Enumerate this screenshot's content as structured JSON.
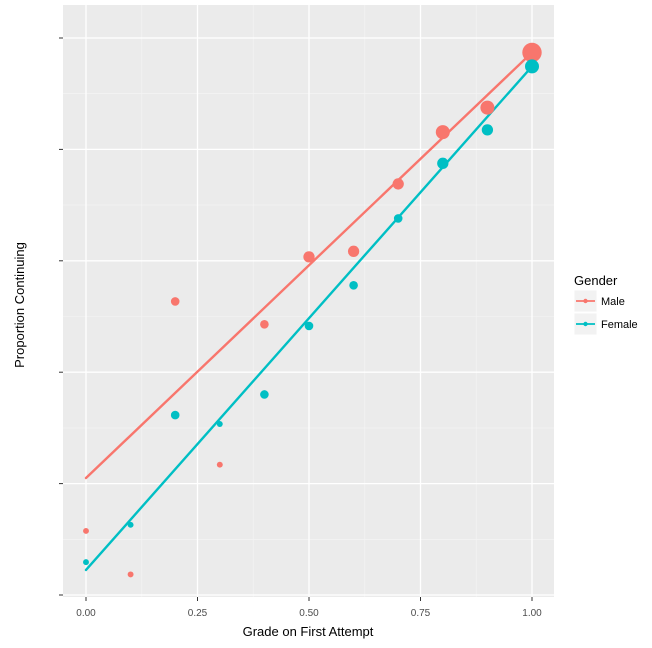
{
  "chart_data": {
    "type": "scatter",
    "title": "",
    "xlabel": "Grade on First Attempt",
    "ylabel": "Proportion Continuing",
    "xlim": [
      -0.05,
      1.05
    ],
    "ylim": [
      0,
      1
    ],
    "x_ticks": [
      0,
      0.25,
      0.5,
      0.75,
      1
    ],
    "x_tick_labels": [
      "0.00",
      "0.25",
      "0.50",
      "0.75",
      "1.00"
    ],
    "y_tick_labels_visible": false,
    "grid": true,
    "legend": {
      "title": "Gender",
      "position": "right"
    },
    "series": [
      {
        "name": "Male",
        "color": "#F8766D",
        "points": [
          {
            "x": 0.0,
            "y": 0.115,
            "size": 1
          },
          {
            "x": 0.1,
            "y": 0.037,
            "size": 1
          },
          {
            "x": 0.2,
            "y": 0.527,
            "size": 2
          },
          {
            "x": 0.3,
            "y": 0.234,
            "size": 1
          },
          {
            "x": 0.4,
            "y": 0.486,
            "size": 2
          },
          {
            "x": 0.5,
            "y": 0.607,
            "size": 3
          },
          {
            "x": 0.6,
            "y": 0.617,
            "size": 3
          },
          {
            "x": 0.7,
            "y": 0.738,
            "size": 3
          },
          {
            "x": 0.8,
            "y": 0.831,
            "size": 4
          },
          {
            "x": 0.9,
            "y": 0.875,
            "size": 4
          },
          {
            "x": 1.0,
            "y": 0.974,
            "size": 6
          }
        ],
        "fit": {
          "intercept": 0.21,
          "slope": 0.764
        }
      },
      {
        "name": "Female",
        "color": "#00BFC4",
        "points": [
          {
            "x": 0.0,
            "y": 0.059,
            "size": 1
          },
          {
            "x": 0.1,
            "y": 0.126,
            "size": 1
          },
          {
            "x": 0.2,
            "y": 0.323,
            "size": 2
          },
          {
            "x": 0.3,
            "y": 0.307,
            "size": 1
          },
          {
            "x": 0.4,
            "y": 0.36,
            "size": 2
          },
          {
            "x": 0.5,
            "y": 0.483,
            "size": 2
          },
          {
            "x": 0.6,
            "y": 0.556,
            "size": 2
          },
          {
            "x": 0.7,
            "y": 0.676,
            "size": 2
          },
          {
            "x": 0.8,
            "y": 0.775,
            "size": 3
          },
          {
            "x": 0.9,
            "y": 0.835,
            "size": 3
          },
          {
            "x": 1.0,
            "y": 0.949,
            "size": 4
          }
        ],
        "fit": {
          "intercept": 0.045,
          "slope": 0.904
        }
      }
    ]
  }
}
